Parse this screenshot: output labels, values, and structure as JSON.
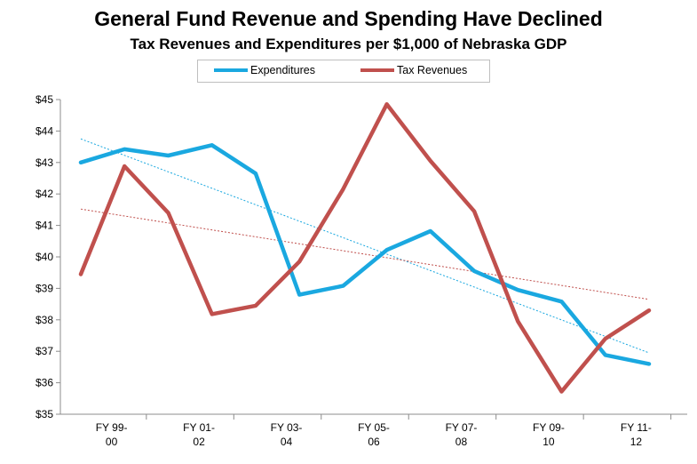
{
  "title": "General Fund Revenue and Spending Have Declined",
  "subtitle": "Tax Revenues and Expenditures per $1,000 of Nebraska GDP",
  "colors": {
    "expenditures": "#1aa8e0",
    "tax_revenues": "#c0504d",
    "axis": "#8c8c8c"
  },
  "chart_data": {
    "type": "line",
    "title": "General Fund Revenue and Spending Have Declined",
    "subtitle": "Tax Revenues and Expenditures per $1,000 of Nebraska GDP",
    "ylim": [
      35,
      45
    ],
    "y_ticks": [
      "$35",
      "$36",
      "$37",
      "$38",
      "$39",
      "$40",
      "$41",
      "$42",
      "$43",
      "$44",
      "$45"
    ],
    "x_tick_labels": [
      [
        "FY 99-",
        "00"
      ],
      [
        "FY 01-",
        "02"
      ],
      [
        "FY 03-",
        "04"
      ],
      [
        "FY 05-",
        "06"
      ],
      [
        "FY 07-",
        "08"
      ],
      [
        "FY 09-",
        "10"
      ],
      [
        "FY 11-",
        "12"
      ]
    ],
    "legend": {
      "position": "top",
      "entries": [
        "Expenditures",
        "Tax Revenues"
      ]
    },
    "grid": false,
    "series": [
      {
        "name": "Expenditures",
        "values": [
          43.0,
          43.42,
          43.22,
          43.55,
          42.65,
          38.8,
          39.08,
          40.22,
          40.82,
          39.55,
          38.95,
          38.58,
          36.88,
          36.6
        ],
        "trendline": [
          43.75,
          36.95
        ]
      },
      {
        "name": "Tax Revenues",
        "values": [
          39.45,
          42.88,
          41.4,
          38.18,
          38.45,
          39.85,
          42.15,
          44.85,
          43.05,
          41.45,
          37.95,
          35.72,
          37.4,
          38.3
        ],
        "trendline": [
          41.52,
          38.65
        ]
      }
    ]
  }
}
